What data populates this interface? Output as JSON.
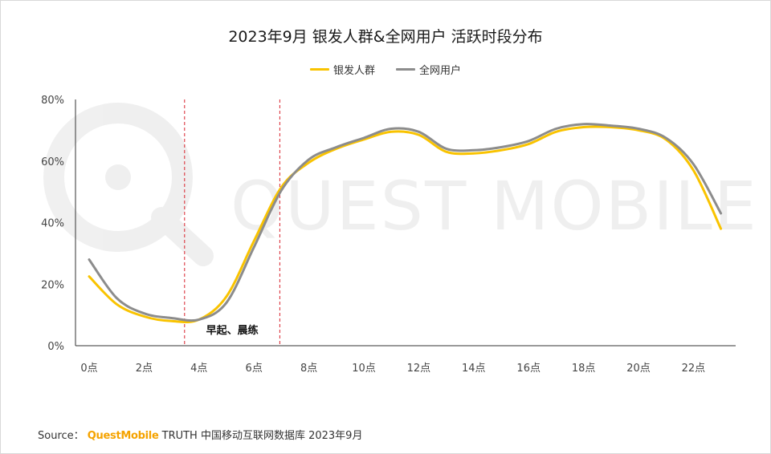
{
  "chart_data": {
    "type": "line",
    "title": "2023年9月 银发人群&全网用户 活跃时段分布",
    "x": [
      0,
      1,
      2,
      3,
      4,
      5,
      6,
      7,
      8,
      9,
      10,
      11,
      12,
      13,
      14,
      15,
      16,
      17,
      18,
      19,
      20,
      21,
      22,
      23
    ],
    "tick_labels": [
      "0点",
      "2点",
      "4点",
      "6点",
      "8点",
      "10点",
      "12点",
      "14点",
      "16点",
      "18点",
      "20点",
      "22点"
    ],
    "tick_x": [
      0,
      2,
      4,
      6,
      8,
      10,
      12,
      14,
      16,
      18,
      20,
      22
    ],
    "ylim": [
      0,
      80
    ],
    "yticks": [
      0,
      20,
      40,
      60,
      80
    ],
    "y_tick_labels": [
      "0%",
      "20%",
      "40%",
      "60%",
      "80%"
    ],
    "series": [
      {
        "name": "银发人群",
        "color": "#f9c300",
        "values": [
          22.5,
          13.5,
          9.5,
          8,
          8.5,
          16,
          34,
          51.5,
          59.5,
          64,
          67,
          69.5,
          68.5,
          63,
          62.5,
          63.5,
          65.5,
          69.5,
          71,
          71,
          70,
          67,
          57,
          38
        ]
      },
      {
        "name": "全网用户",
        "color": "#8c8c8c",
        "values": [
          28,
          15.5,
          10.5,
          9,
          8.5,
          14,
          32,
          50.5,
          60.5,
          64.5,
          67.5,
          70.5,
          69.5,
          64,
          63.5,
          64.5,
          66.5,
          70.5,
          72,
          71.5,
          70.5,
          67.5,
          59,
          43
        ]
      }
    ],
    "grid": false,
    "legend_position": "top-center",
    "annotations": [
      {
        "text": "早起、晨练",
        "x_from": 4,
        "x_to": 7
      }
    ]
  },
  "watermark": "QUEST MOBILE",
  "footer": {
    "source_label": "Source：",
    "brand": "QuestMobile",
    "rest": "TRUTH 中国移动互联网数据库 2023年9月"
  }
}
